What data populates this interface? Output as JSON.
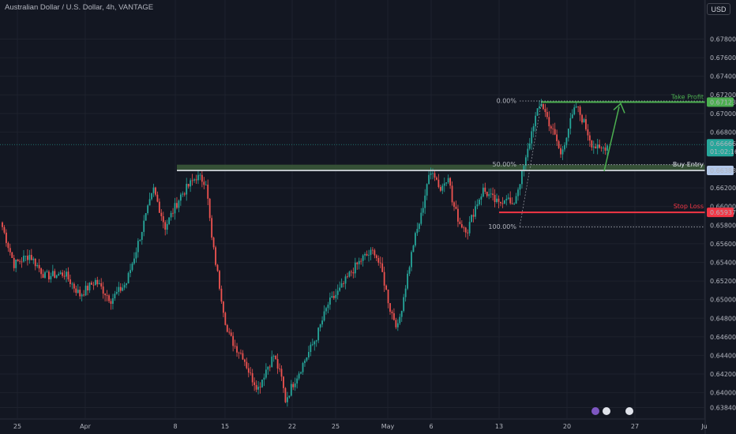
{
  "header": {
    "title": "Australian Dollar / U.S. Dollar, 4h, VANTAGE",
    "currency": "USD"
  },
  "colors": {
    "background": "#131722",
    "up": "#26a69a",
    "down": "#ef5350",
    "green_line": "#4caf50",
    "red_line": "#f23645",
    "buy_line": "#d1d4dc",
    "zone": "#3c5a3a",
    "arrow": "#4caf50"
  },
  "chart_data": {
    "type": "candlestick",
    "price_range": [
      0.6381,
      0.6805
    ],
    "y_ticks": [
      "0.67800",
      "0.67600",
      "0.67400",
      "0.67200",
      "0.67000",
      "0.66800",
      "0.66200",
      "0.66000",
      "0.65800",
      "0.65600",
      "0.65400",
      "0.65200",
      "0.65000",
      "0.64800",
      "0.64600",
      "0.64400",
      "0.64200",
      "0.64000",
      "0.63840"
    ],
    "x_ticks": [
      "25",
      "Apr",
      "8",
      "15",
      "22",
      "25",
      "May",
      "6",
      "13",
      "20",
      "27",
      "Ju"
    ],
    "levels": {
      "take_profit": {
        "label": "Take Profit",
        "price": 0.67123,
        "price_label": "0.67123"
      },
      "buy_entry": {
        "label": "Buy Entry",
        "price": 0.66388,
        "price_label": "0.66388"
      },
      "stop_loss": {
        "label": "Stop Loss",
        "price": 0.65937,
        "price_label": "0.65937"
      },
      "current": {
        "price": 0.66666,
        "price_label": "0.66666",
        "countdown": "01:02:16"
      }
    },
    "fib": [
      {
        "label": "0.00%",
        "price": 0.67134
      },
      {
        "label": "50.00%",
        "price": 0.6645
      },
      {
        "label": "100.00%",
        "price": 0.6578
      }
    ],
    "zone_range": [
      0.6638,
      0.6645
    ],
    "keypoints": [
      [
        0,
        0.6578
      ],
      [
        6,
        0.6538
      ],
      [
        14,
        0.6548
      ],
      [
        22,
        0.6525
      ],
      [
        32,
        0.6528
      ],
      [
        40,
        0.6505
      ],
      [
        48,
        0.652
      ],
      [
        56,
        0.65
      ],
      [
        64,
        0.6518
      ],
      [
        72,
        0.6575
      ],
      [
        78,
        0.6618
      ],
      [
        84,
        0.6578
      ],
      [
        92,
        0.6612
      ],
      [
        100,
        0.6632
      ],
      [
        105,
        0.6627
      ],
      [
        108,
        0.6565
      ],
      [
        112,
        0.6515
      ],
      [
        116,
        0.6465
      ],
      [
        120,
        0.645
      ],
      [
        124,
        0.644
      ],
      [
        128,
        0.6418
      ],
      [
        132,
        0.6405
      ],
      [
        136,
        0.6425
      ],
      [
        140,
        0.644
      ],
      [
        144,
        0.6415
      ],
      [
        146,
        0.6392
      ],
      [
        150,
        0.641
      ],
      [
        156,
        0.6435
      ],
      [
        162,
        0.646
      ],
      [
        168,
        0.6495
      ],
      [
        174,
        0.651
      ],
      [
        180,
        0.653
      ],
      [
        186,
        0.6545
      ],
      [
        192,
        0.6552
      ],
      [
        196,
        0.6528
      ],
      [
        200,
        0.649
      ],
      [
        204,
        0.647
      ],
      [
        208,
        0.6515
      ],
      [
        212,
        0.656
      ],
      [
        216,
        0.659
      ],
      [
        219,
        0.6625
      ],
      [
        222,
        0.664
      ],
      [
        226,
        0.6618
      ],
      [
        230,
        0.6635
      ],
      [
        232,
        0.6605
      ],
      [
        236,
        0.6582
      ],
      [
        240,
        0.6575
      ],
      [
        244,
        0.66
      ],
      [
        248,
        0.6618
      ],
      [
        252,
        0.661
      ],
      [
        256,
        0.6602
      ],
      [
        260,
        0.6612
      ],
      [
        263,
        0.6598
      ],
      [
        266,
        0.662
      ],
      [
        270,
        0.665
      ],
      [
        274,
        0.669
      ],
      [
        278,
        0.6712
      ],
      [
        282,
        0.669
      ],
      [
        286,
        0.667
      ],
      [
        288,
        0.6655
      ],
      [
        292,
        0.6685
      ],
      [
        296,
        0.6708
      ],
      [
        300,
        0.669
      ],
      [
        304,
        0.6668
      ],
      [
        308,
        0.666
      ],
      [
        312,
        0.6666
      ]
    ]
  }
}
